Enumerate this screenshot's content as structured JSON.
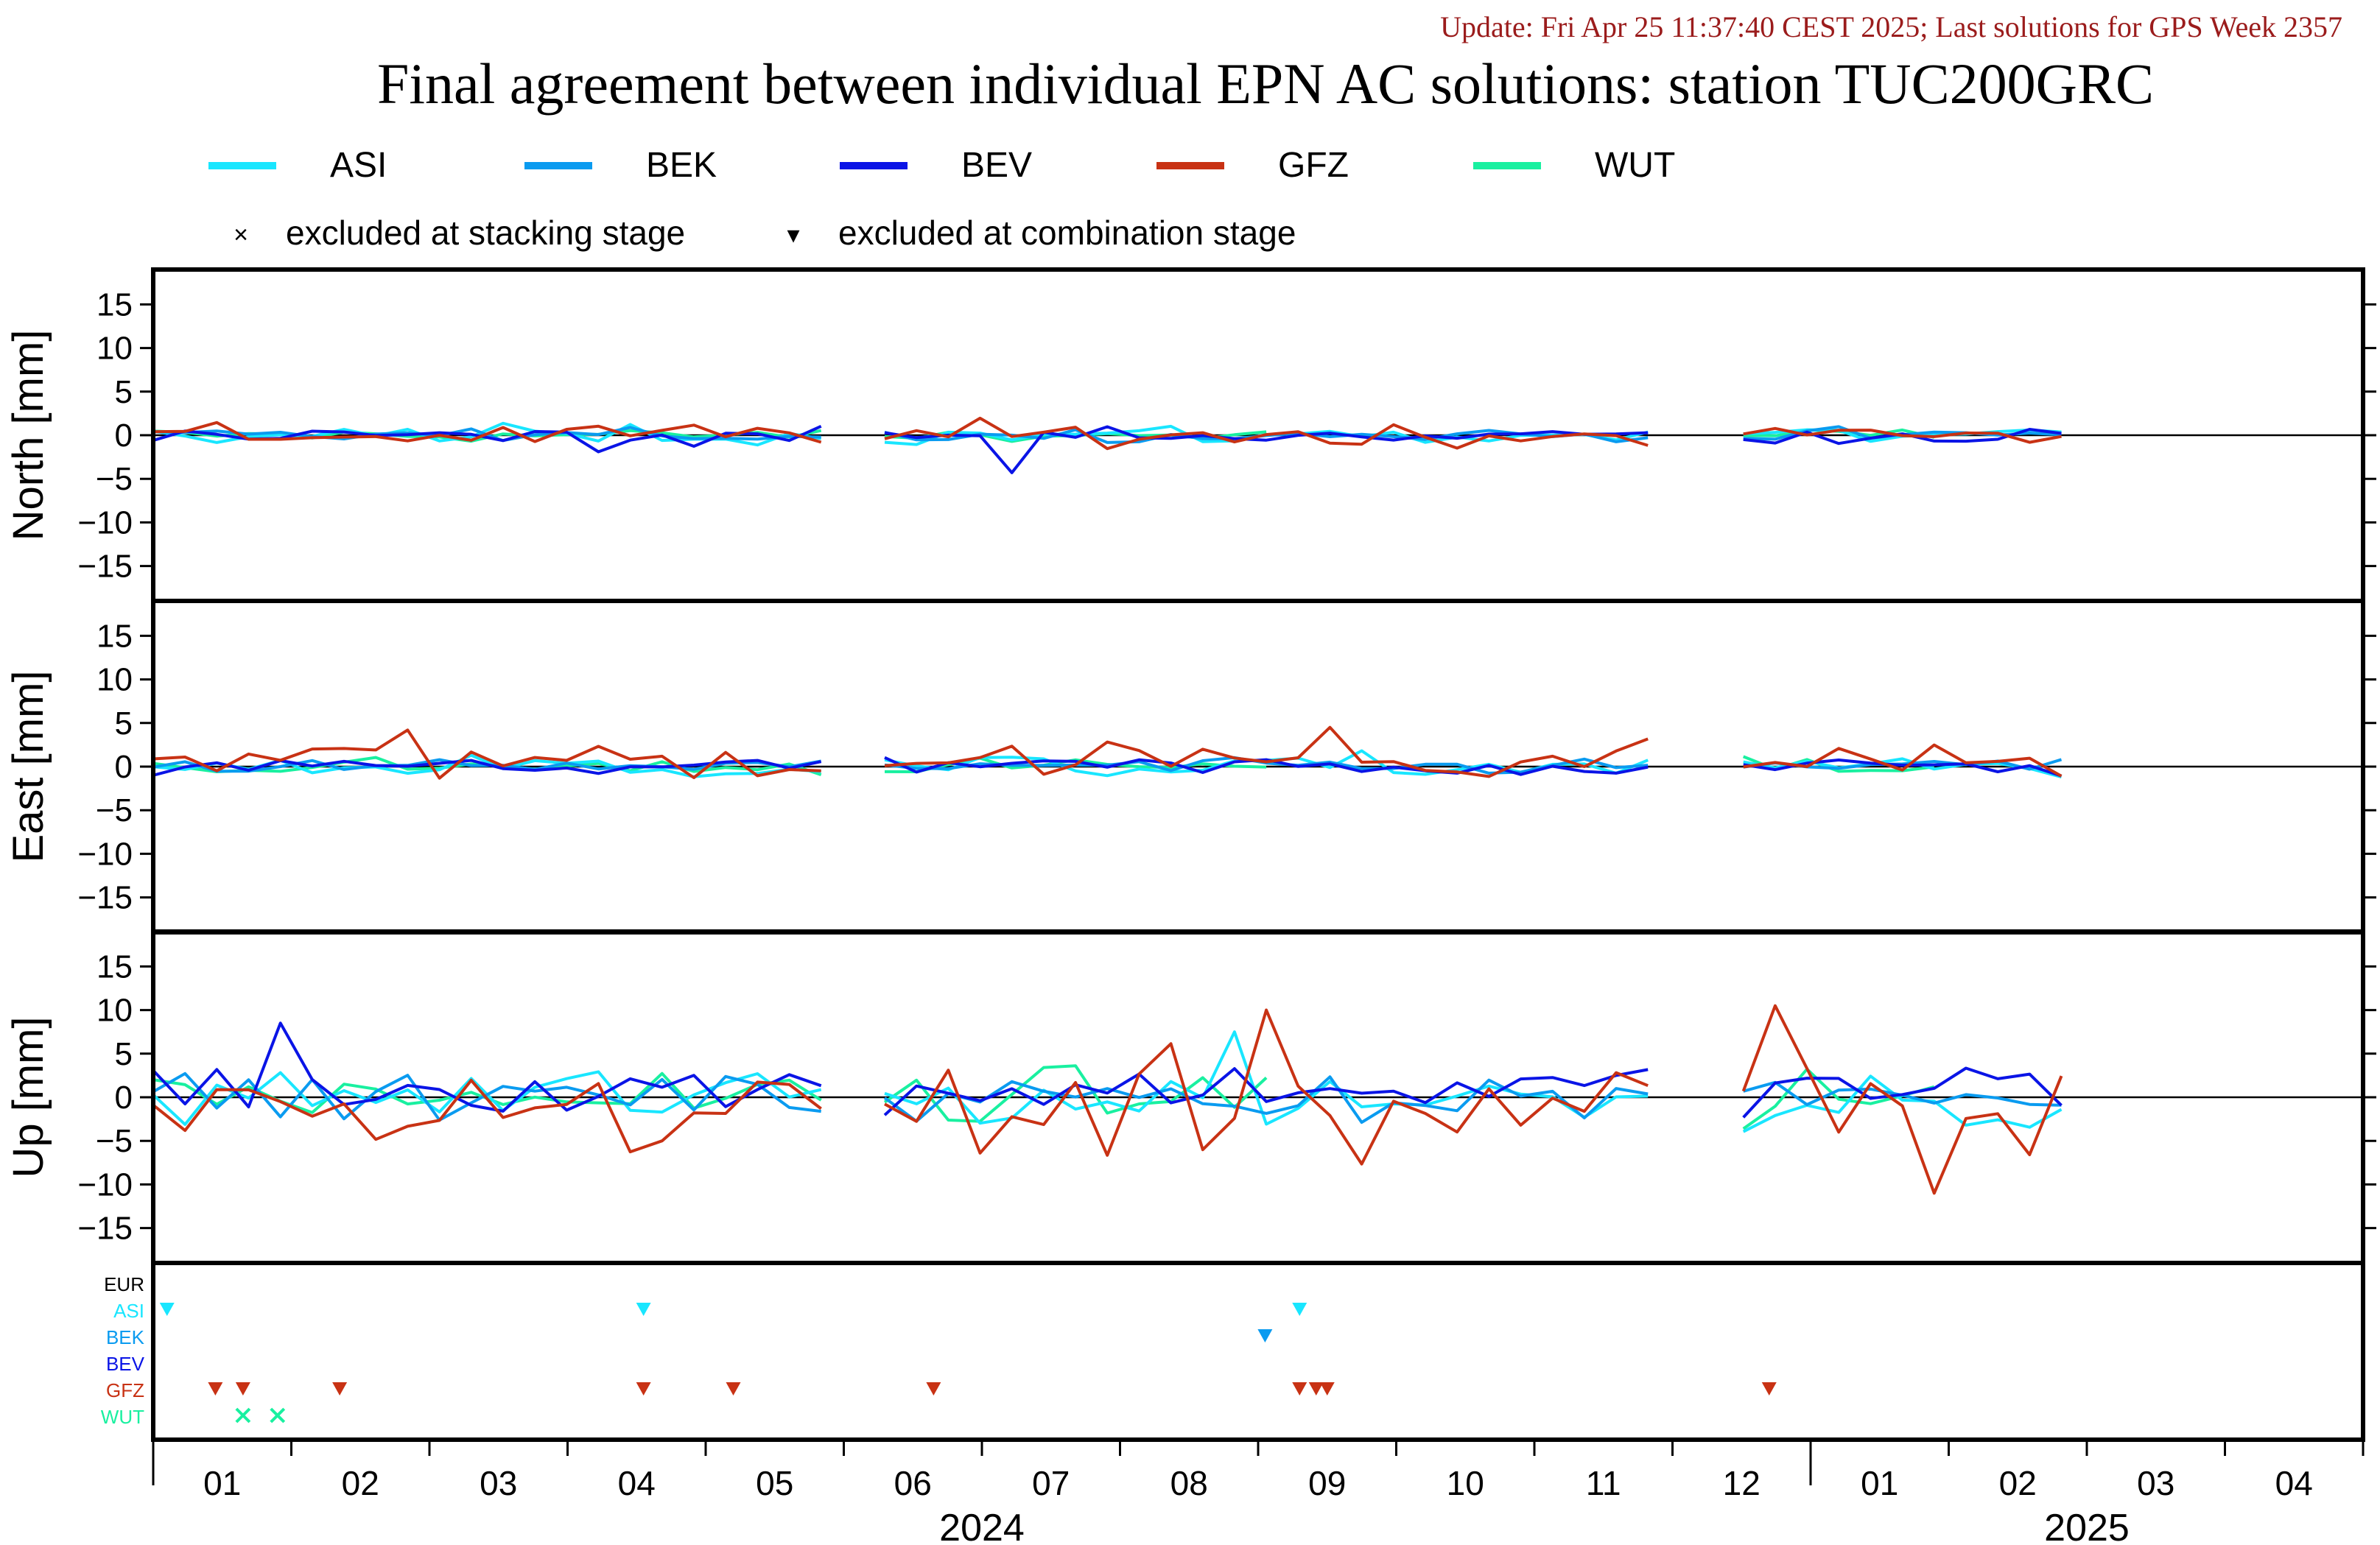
{
  "header": {
    "update_text": "Update: Fri Apr 25 11:37:40 CEST 2025; Last solutions for GPS Week 2357",
    "title": "Final agreement between individual EPN AC solutions: station TUC200GRC"
  },
  "legend": {
    "series": [
      {
        "name": "ASI",
        "color": "#19e6ff"
      },
      {
        "name": "BEK",
        "color": "#0a9bf0"
      },
      {
        "name": "BEV",
        "color": "#0a14e6"
      },
      {
        "name": "GFZ",
        "color": "#c83214"
      },
      {
        "name": "WUT",
        "color": "#19f0a0"
      }
    ],
    "excluded_stacking_symbol": "×",
    "excluded_stacking_label": "excluded at stacking stage",
    "excluded_combination_symbol": "▾",
    "excluded_combination_label": "excluded at combination stage"
  },
  "chart_data": {
    "type": "line",
    "x_axis": {
      "month_ticks": [
        "01",
        "02",
        "03",
        "04",
        "05",
        "06",
        "07",
        "08",
        "09",
        "10",
        "11",
        "12",
        "01",
        "02",
        "03",
        "04"
      ],
      "year_labels": [
        "2024",
        "2025"
      ]
    },
    "panels": [
      {
        "ylabel": "North [mm]",
        "ylim": [
          -19,
          19
        ],
        "yticks": [
          15,
          10,
          5,
          0,
          -5,
          -10,
          -15
        ],
        "noise": {
          "ASI": 0.8,
          "BEK": 0.5,
          "BEV": 0.7,
          "GFZ": 1.0,
          "WUT": 0.5
        },
        "spikes": [
          {
            "series": "BEV",
            "month": 6.25,
            "value": -4.3
          },
          {
            "series": "BEV",
            "month": 3.3,
            "value": -1.9
          }
        ]
      },
      {
        "ylabel": "East [mm]",
        "ylim": [
          -19,
          19
        ],
        "yticks": [
          15,
          10,
          5,
          0,
          -5,
          -10,
          -15
        ],
        "noise": {
          "ASI": 1.0,
          "BEK": 0.6,
          "BEV": 0.8,
          "GFZ": 1.6,
          "WUT": 0.7
        },
        "spikes": [
          {
            "series": "GFZ",
            "month": 1.9,
            "value": 4.2
          },
          {
            "series": "GFZ",
            "month": 8.6,
            "value": 4.5
          }
        ]
      },
      {
        "ylabel": "Up [mm]",
        "ylim": [
          -19,
          19
        ],
        "yticks": [
          15,
          10,
          5,
          0,
          -5,
          -10,
          -15
        ],
        "noise": {
          "ASI": 2.6,
          "BEK": 1.8,
          "BEV": 2.0,
          "GFZ": 4.2,
          "WUT": 2.0
        },
        "spikes": [
          {
            "series": "GFZ",
            "month": 8.1,
            "value": 10.0
          },
          {
            "series": "GFZ",
            "month": 11.7,
            "value": 10.5
          },
          {
            "series": "GFZ",
            "month": 12.9,
            "value": -11.0
          },
          {
            "series": "BEV",
            "month": 0.95,
            "value": 8.5
          },
          {
            "series": "ASI",
            "month": 7.75,
            "value": 7.5
          }
        ]
      }
    ],
    "data_gaps_months": [
      [
        4.95,
        5.15
      ],
      [
        10.95,
        11.3
      ],
      [
        14.0,
        16.0
      ]
    ],
    "exclusion_rows": [
      "EUR",
      "ASI",
      "BEK",
      "BEV",
      "GFZ",
      "WUT"
    ],
    "exclusions": [
      {
        "row": "ASI",
        "symbol": "triangle",
        "months": [
          0.1,
          3.55,
          8.3
        ]
      },
      {
        "row": "BEK",
        "symbol": "triangle",
        "months": [
          8.05
        ]
      },
      {
        "row": "GFZ",
        "symbol": "triangle",
        "months": [
          0.45,
          0.65,
          1.35,
          3.55,
          4.2,
          5.65,
          8.3,
          8.42,
          8.5,
          11.7
        ]
      },
      {
        "row": "WUT",
        "symbol": "cross",
        "months": [
          0.65,
          0.9
        ]
      }
    ]
  }
}
